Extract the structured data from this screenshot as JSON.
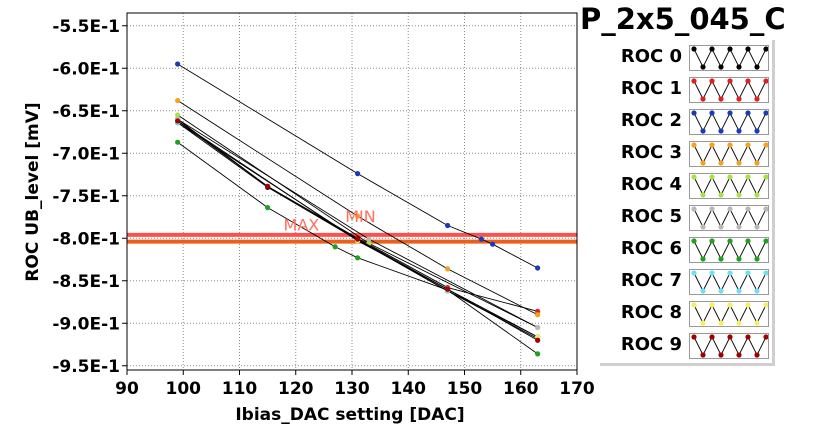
{
  "title": "P_2x5_045_C",
  "chart_data": {
    "type": "line",
    "xlabel": "Ibias_DAC setting [DAC]",
    "ylabel": "ROC UB_level [mV]",
    "xlim": [
      90,
      170
    ],
    "ylim": [
      -0.955,
      -0.535
    ],
    "x_ticks": [
      90,
      100,
      110,
      120,
      130,
      140,
      150,
      160,
      170
    ],
    "x_tick_labels": [
      "90",
      "100",
      "110",
      "120",
      "130",
      "140",
      "150",
      "160",
      "170"
    ],
    "y_ticks": [
      -0.55,
      -0.6,
      -0.65,
      -0.7,
      -0.75,
      -0.8,
      -0.85,
      -0.9,
      -0.95
    ],
    "y_tick_labels": [
      "-5.5E-1",
      "-6.0E-1",
      "-6.5E-1",
      "-7.0E-1",
      "-7.5E-1",
      "-8.0E-1",
      "-8.5E-1",
      "-9.0E-1",
      "-9.5E-1"
    ],
    "grid": true,
    "legend_position": "right",
    "threshold_lines": [
      {
        "y": -0.796,
        "color": "#ff5050"
      },
      {
        "y": -0.804,
        "color": "#e8601c"
      }
    ],
    "annotations": [
      {
        "text": "MAX",
        "x": 121,
        "y": -0.791,
        "color": "#ff7060"
      },
      {
        "text": "MIN",
        "x": 131.5,
        "y": -0.781,
        "color": "#ff7060"
      }
    ],
    "series": [
      {
        "name": "ROC 0",
        "color": "#000000",
        "points": [
          [
            99,
            -0.664
          ],
          [
            115,
            -0.74
          ],
          [
            131,
            -0.802
          ],
          [
            147,
            -0.862
          ],
          [
            163,
            -0.916
          ]
        ]
      },
      {
        "name": "ROC 1",
        "color": "#e02020",
        "points": [
          [
            99,
            -0.66
          ],
          [
            115,
            -0.739
          ],
          [
            131,
            -0.8
          ],
          [
            147,
            -0.858
          ],
          [
            163,
            -0.886
          ]
        ]
      },
      {
        "name": "ROC 2",
        "color": "#1a3ab8",
        "points": [
          [
            99,
            -0.595
          ],
          [
            131,
            -0.724
          ],
          [
            147,
            -0.785
          ],
          [
            153,
            -0.801
          ],
          [
            155,
            -0.807
          ],
          [
            163,
            -0.835
          ]
        ]
      },
      {
        "name": "ROC 3",
        "color": "#f5a020",
        "points": [
          [
            99,
            -0.638
          ],
          [
            131,
            -0.774
          ],
          [
            147,
            -0.836
          ],
          [
            163,
            -0.89
          ]
        ]
      },
      {
        "name": "ROC 4",
        "color": "#a8e048",
        "points": [
          [
            99,
            -0.655
          ],
          [
            133,
            -0.806
          ],
          [
            163,
            -0.905
          ]
        ]
      },
      {
        "name": "ROC 5",
        "color": "#b8b8b8",
        "points": [
          [
            99,
            -0.66
          ],
          [
            133,
            -0.801
          ],
          [
            163,
            -0.905
          ]
        ]
      },
      {
        "name": "ROC 6",
        "color": "#20a020",
        "points": [
          [
            99,
            -0.687
          ],
          [
            115,
            -0.764
          ],
          [
            127,
            -0.81
          ],
          [
            131,
            -0.823
          ],
          [
            147,
            -0.861
          ],
          [
            163,
            -0.936
          ]
        ]
      },
      {
        "name": "ROC 7",
        "color": "#70e0f0",
        "points": [
          [
            99,
            -0.664
          ],
          [
            131,
            -0.802
          ],
          [
            147,
            -0.862
          ],
          [
            163,
            -0.918
          ]
        ]
      },
      {
        "name": "ROC 8",
        "color": "#f0f060",
        "points": [
          [
            99,
            -0.662
          ],
          [
            131,
            -0.803
          ],
          [
            147,
            -0.86
          ],
          [
            163,
            -0.916
          ]
        ]
      },
      {
        "name": "ROC 9",
        "color": "#a00000",
        "points": [
          [
            99,
            -0.662
          ],
          [
            115,
            -0.739
          ],
          [
            131,
            -0.801
          ],
          [
            147,
            -0.86
          ],
          [
            163,
            -0.92
          ]
        ]
      }
    ]
  }
}
